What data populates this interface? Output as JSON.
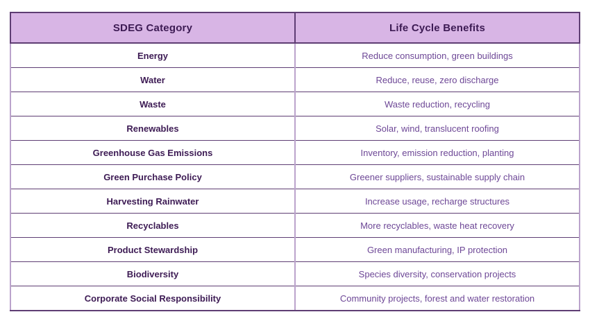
{
  "colors": {
    "header_bg": "#d8b5e5",
    "header_text": "#3d1b54",
    "category_text": "#3d1b54",
    "benefits_text": "#6d4796",
    "border_dark": "#5e3d73",
    "border_light": "#bba3cc"
  },
  "table": {
    "headers": [
      "SDEG Category",
      "Life Cycle Benefits"
    ],
    "rows": [
      {
        "category": "Energy",
        "benefits": "Reduce consumption, green buildings"
      },
      {
        "category": "Water",
        "benefits": "Reduce, reuse, zero discharge"
      },
      {
        "category": "Waste",
        "benefits": "Waste reduction, recycling"
      },
      {
        "category": "Renewables",
        "benefits": "Solar, wind, translucent roofing"
      },
      {
        "category": "Greenhouse Gas Emissions",
        "benefits": "Inventory, emission reduction, planting"
      },
      {
        "category": "Green Purchase Policy",
        "benefits": "Greener suppliers, sustainable supply chain"
      },
      {
        "category": "Harvesting Rainwater",
        "benefits": "Increase usage, recharge structures"
      },
      {
        "category": "Recyclables",
        "benefits": "More recyclables, waste heat recovery"
      },
      {
        "category": "Product Stewardship",
        "benefits": "Green manufacturing, IP protection"
      },
      {
        "category": "Biodiversity",
        "benefits": "Species diversity, conservation projects"
      },
      {
        "category": "Corporate Social Responsibility",
        "benefits": "Community projects, forest and water restoration"
      }
    ]
  },
  "chart_data": {
    "type": "table",
    "columns": [
      "SDEG Category",
      "Life Cycle Benefits"
    ],
    "rows": [
      [
        "Energy",
        "Reduce consumption, green buildings"
      ],
      [
        "Water",
        "Reduce, reuse, zero discharge"
      ],
      [
        "Waste",
        "Waste reduction, recycling"
      ],
      [
        "Renewables",
        "Solar, wind, translucent roofing"
      ],
      [
        "Greenhouse Gas Emissions",
        "Inventory, emission reduction, planting"
      ],
      [
        "Green Purchase Policy",
        "Greener suppliers, sustainable supply chain"
      ],
      [
        "Harvesting Rainwater",
        "Increase usage, recharge structures"
      ],
      [
        "Recyclables",
        "More recyclables, waste heat recovery"
      ],
      [
        "Product Stewardship",
        "Green manufacturing, IP protection"
      ],
      [
        "Biodiversity",
        "Species diversity, conservation projects"
      ],
      [
        "Corporate Social Responsibility",
        "Community projects, forest and water restoration"
      ]
    ],
    "layout": {
      "header_fill": "#d8b5e5",
      "grid": true,
      "column_align": [
        "center",
        "center"
      ]
    }
  }
}
